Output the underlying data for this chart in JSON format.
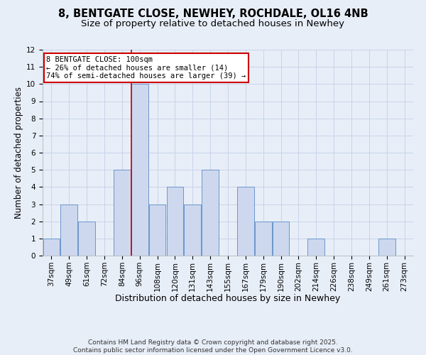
{
  "title": "8, BENTGATE CLOSE, NEWHEY, ROCHDALE, OL16 4NB",
  "subtitle": "Size of property relative to detached houses in Newhey",
  "xlabel": "Distribution of detached houses by size in Newhey",
  "ylabel": "Number of detached properties",
  "bins": [
    "37sqm",
    "49sqm",
    "61sqm",
    "72sqm",
    "84sqm",
    "96sqm",
    "108sqm",
    "120sqm",
    "131sqm",
    "143sqm",
    "155sqm",
    "167sqm",
    "179sqm",
    "190sqm",
    "202sqm",
    "214sqm",
    "226sqm",
    "238sqm",
    "249sqm",
    "261sqm",
    "273sqm"
  ],
  "values": [
    1,
    3,
    2,
    0,
    5,
    10,
    3,
    4,
    3,
    5,
    0,
    4,
    2,
    2,
    0,
    1,
    0,
    0,
    0,
    1,
    0
  ],
  "bar_color": "#cdd8ee",
  "bar_edge_color": "#6b96cc",
  "grid_color": "#c8d4e8",
  "bg_color": "#e8eef8",
  "property_line_x": 4.525,
  "property_line_color": "#cc0000",
  "annotation_text": "8 BENTGATE CLOSE: 100sqm\n← 26% of detached houses are smaller (14)\n74% of semi-detached houses are larger (39) →",
  "annotation_box_color": "#ffffff",
  "annotation_box_edge": "#cc0000",
  "ylim": [
    0,
    12
  ],
  "yticks": [
    0,
    1,
    2,
    3,
    4,
    5,
    6,
    7,
    8,
    9,
    10,
    11,
    12
  ],
  "title_fontsize": 10.5,
  "subtitle_fontsize": 9.5,
  "xlabel_fontsize": 9,
  "ylabel_fontsize": 8.5,
  "tick_fontsize": 7.5,
  "footer_text": "Contains HM Land Registry data © Crown copyright and database right 2025.\nContains public sector information licensed under the Open Government Licence v3.0.",
  "footer_fontsize": 6.5
}
